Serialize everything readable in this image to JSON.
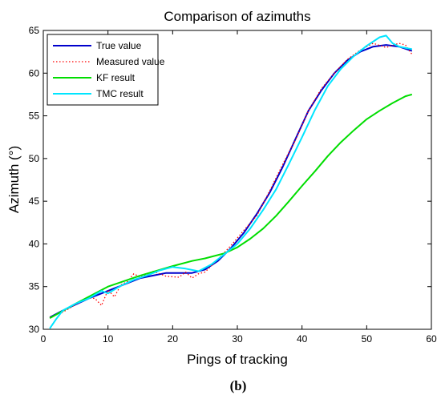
{
  "caption": "(b)",
  "chart_data": {
    "type": "line",
    "title": "Comparison of azimuths",
    "xlabel": "Pings of tracking",
    "ylabel": "Azimuth (°)",
    "xlim": [
      0,
      60
    ],
    "ylim": [
      30,
      65
    ],
    "xticks": [
      0,
      10,
      20,
      30,
      40,
      50,
      60
    ],
    "yticks": [
      30,
      35,
      40,
      45,
      50,
      55,
      60,
      65
    ],
    "grid": false,
    "legend_position": "top-left",
    "series": [
      {
        "name": "True value",
        "color": "#0000cc",
        "style": "solid",
        "x": [
          1,
          3,
          5,
          7,
          9,
          11,
          13,
          15,
          17,
          19,
          21,
          23,
          25,
          27,
          29,
          31,
          33,
          35,
          37,
          39,
          41,
          43,
          45,
          47,
          49,
          51,
          53,
          55,
          57
        ],
        "y": [
          31.4,
          32.2,
          32.9,
          33.6,
          34.2,
          34.8,
          35.4,
          36.0,
          36.3,
          36.6,
          36.6,
          36.6,
          37.0,
          38.0,
          39.5,
          41.3,
          43.5,
          46.0,
          49.0,
          52.3,
          55.6,
          58.0,
          60.0,
          61.5,
          62.5,
          63.1,
          63.3,
          63.1,
          62.6
        ]
      },
      {
        "name": "Measured value",
        "color": "#ff0000",
        "style": "dotted",
        "x": [
          1,
          3,
          5,
          7,
          8,
          9,
          10,
          11,
          12,
          13,
          14,
          15,
          17,
          19,
          21,
          22,
          23,
          24,
          25,
          27,
          29,
          31,
          33,
          35,
          37,
          39,
          41,
          43,
          45,
          47,
          49,
          51,
          53,
          55,
          56,
          57
        ],
        "y": [
          31.4,
          32.0,
          32.9,
          33.7,
          33.6,
          32.8,
          34.6,
          33.8,
          35.2,
          35.6,
          36.5,
          36.1,
          36.8,
          36.2,
          36.1,
          36.7,
          36.0,
          36.5,
          36.7,
          38.2,
          39.8,
          41.6,
          43.3,
          46.2,
          49.3,
          52.2,
          55.6,
          58.2,
          60.0,
          61.6,
          62.7,
          63.5,
          63.0,
          63.5,
          63.3,
          62.2
        ]
      },
      {
        "name": "KF result",
        "color": "#00dd00",
        "style": "solid",
        "x": [
          1,
          5,
          10,
          15,
          20,
          23,
          25,
          28,
          30,
          32,
          34,
          36,
          38,
          40,
          42,
          44,
          46,
          48,
          50,
          52,
          54,
          56,
          57
        ],
        "y": [
          31.3,
          33.0,
          35.0,
          36.3,
          37.4,
          38.0,
          38.3,
          38.9,
          39.6,
          40.6,
          41.8,
          43.3,
          45.0,
          46.8,
          48.5,
          50.3,
          51.9,
          53.3,
          54.6,
          55.6,
          56.5,
          57.3,
          57.5
        ]
      },
      {
        "name": "TMC result",
        "color": "#00e5ff",
        "style": "solid",
        "x": [
          1,
          2,
          3,
          5,
          7,
          9,
          10,
          12,
          14,
          16,
          18,
          20,
          22,
          24,
          26,
          28,
          30,
          32,
          34,
          36,
          38,
          40,
          42,
          44,
          46,
          48,
          50,
          52,
          53,
          54,
          55,
          57
        ],
        "y": [
          30.1,
          31.2,
          32.2,
          33.0,
          33.6,
          34.5,
          34.2,
          35.1,
          35.8,
          36.3,
          36.9,
          37.3,
          37.1,
          36.8,
          37.6,
          38.8,
          40.0,
          41.8,
          44.0,
          46.4,
          49.4,
          52.5,
          55.7,
          58.5,
          60.5,
          62.0,
          63.2,
          64.2,
          64.4,
          63.5,
          63.1,
          62.8
        ]
      }
    ]
  }
}
